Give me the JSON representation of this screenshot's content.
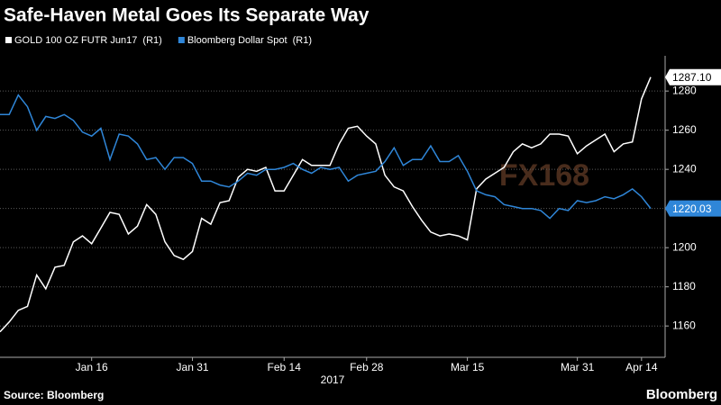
{
  "chart_data": {
    "type": "line",
    "title": "Safe-Haven Metal Goes Its Separate Way",
    "xlabel": "2017",
    "source": "Source: Bloomberg",
    "brand": "Bloomberg",
    "watermark": "FX168",
    "categories": [
      null,
      null,
      null,
      null,
      null,
      null,
      null,
      null,
      null,
      null,
      "Jan 16",
      null,
      null,
      null,
      null,
      null,
      null,
      null,
      null,
      null,
      null,
      "Jan 31",
      null,
      null,
      null,
      null,
      null,
      null,
      null,
      null,
      null,
      "Feb 14",
      null,
      null,
      null,
      null,
      null,
      null,
      null,
      null,
      "Feb 28",
      null,
      null,
      null,
      null,
      null,
      null,
      null,
      null,
      null,
      null,
      "Mar 15",
      null,
      null,
      null,
      null,
      null,
      null,
      null,
      null,
      null,
      null,
      null,
      "Mar 31",
      null,
      null,
      null,
      null,
      null,
      null,
      "Apr 14",
      null
    ],
    "ylim": [
      1144,
      1298
    ],
    "yticks": [
      1160,
      1180,
      1200,
      1220,
      1240,
      1260,
      1280
    ],
    "grid": true,
    "series": [
      {
        "name": "GOLD 100 OZ FUTR Jun17  (R1)",
        "color": "#ffffff",
        "values": [
          1157,
          1162,
          1168,
          1170,
          1186,
          1179,
          1190,
          1191,
          1203,
          1206,
          1202,
          1210,
          1218,
          1217,
          1207,
          1211,
          1222,
          1217,
          1203,
          1196,
          1194,
          1198,
          1215,
          1212,
          1223,
          1224,
          1236,
          1240,
          1239,
          1241,
          1229,
          1229,
          1237,
          1245,
          1242,
          1242,
          1242,
          1253,
          1261,
          1262,
          1257,
          1253,
          1237,
          1231,
          1229,
          1221,
          1214,
          1208,
          1206,
          1207,
          1206,
          1204,
          1230,
          1235,
          1238,
          1241,
          1249,
          1253,
          1251,
          1253,
          1258,
          1258,
          1257,
          1248,
          1252,
          1255,
          1258,
          1249,
          1253,
          1254,
          1276,
          1287.1
        ],
        "value_labels": [
          null,
          null,
          null,
          null,
          null,
          null,
          null,
          null,
          null,
          null,
          null,
          null,
          null,
          null,
          null,
          null,
          null,
          null,
          null,
          null,
          null,
          null,
          null,
          null,
          null,
          null,
          null,
          null,
          null,
          null,
          null,
          null,
          null,
          null,
          null,
          null,
          null,
          null,
          null,
          null,
          null,
          null,
          null,
          null,
          null,
          null,
          null,
          null,
          null,
          null,
          null,
          null,
          null,
          null,
          null,
          null,
          null,
          null,
          null,
          null,
          null,
          null,
          null,
          null,
          null,
          null,
          null,
          null,
          null,
          null,
          null,
          "1287.10"
        ]
      },
      {
        "name": "Bloomberg Dollar Spot  (R1)",
        "color": "#2f86d8",
        "values": [
          1268,
          1268,
          1278,
          1272,
          1260,
          1267,
          1266,
          1268,
          1265,
          1259,
          1257,
          1261,
          1245,
          1258,
          1257,
          1253,
          1245,
          1246,
          1240,
          1246,
          1246,
          1243,
          1234,
          1234,
          1232,
          1231,
          1234,
          1238,
          1237,
          1240,
          1240,
          1241,
          1243,
          1240,
          1238,
          1241,
          1240,
          1241,
          1234,
          1237,
          1238,
          1239,
          1244,
          1251,
          1242,
          1245,
          1245,
          1252,
          1244,
          1244,
          1247,
          1239,
          1229,
          1227,
          1226,
          1222,
          1221,
          1220,
          1220,
          1219,
          1215,
          1220,
          1219,
          1224,
          1223,
          1224,
          1226,
          1225,
          1227,
          1230,
          1226,
          1220.03
        ],
        "value_labels": [
          null,
          null,
          null,
          null,
          null,
          null,
          null,
          null,
          null,
          null,
          null,
          null,
          null,
          null,
          null,
          null,
          null,
          null,
          null,
          null,
          null,
          null,
          null,
          null,
          null,
          null,
          null,
          null,
          null,
          null,
          null,
          null,
          null,
          null,
          null,
          null,
          null,
          null,
          null,
          null,
          null,
          null,
          null,
          null,
          null,
          null,
          null,
          null,
          null,
          null,
          null,
          null,
          null,
          null,
          null,
          null,
          null,
          null,
          null,
          null,
          null,
          null,
          null,
          null,
          null,
          null,
          null,
          null,
          null,
          null,
          null,
          "1220.03"
        ]
      }
    ]
  }
}
